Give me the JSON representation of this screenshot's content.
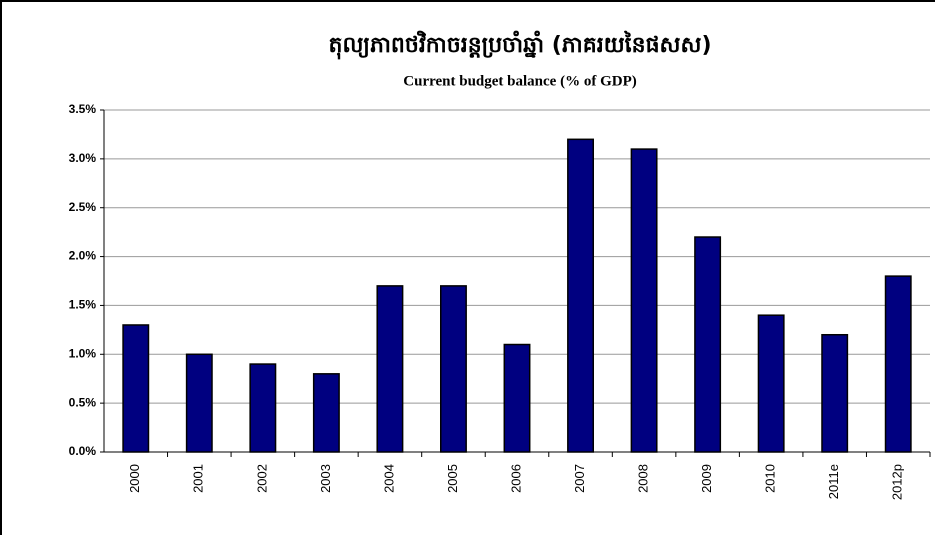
{
  "chart_data": {
    "type": "bar",
    "title": "តុល្យភាពថវិកាចរន្តប្រចាំឆ្នាំ (ភាគរយនៃផសស)",
    "subtitle": "Current budget balance (% of GDP)",
    "categories": [
      "2000",
      "2001",
      "2002",
      "2003",
      "2004",
      "2005",
      "2006",
      "2007",
      "2008",
      "2009",
      "2010",
      "2011e",
      "2012p"
    ],
    "values": [
      1.3,
      1.0,
      0.9,
      0.8,
      1.7,
      1.7,
      1.1,
      3.2,
      3.1,
      2.2,
      1.4,
      1.2,
      1.8
    ],
    "color": "#000080",
    "ylim": [
      0,
      3.5
    ],
    "yticks": [
      {
        "value": 0,
        "label": "0.0%"
      },
      {
        "value": 0.5,
        "label": "0.5%"
      },
      {
        "value": 1.0,
        "label": "1.0%"
      },
      {
        "value": 1.5,
        "label": "1.5%"
      },
      {
        "value": 2.0,
        "label": "2.0%"
      },
      {
        "value": 2.5,
        "label": "2.5%"
      },
      {
        "value": 3.0,
        "label": "3.0%"
      },
      {
        "value": 3.5,
        "label": "3.5%"
      }
    ],
    "grid": true
  }
}
